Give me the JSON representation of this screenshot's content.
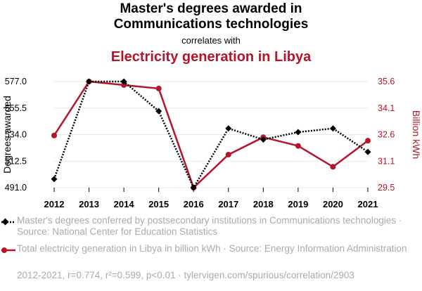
{
  "header": {
    "title_line1": "Master's degrees awarded in",
    "title_line2": "Communications technologies",
    "connector": "correlates with",
    "title2": "Electricity generation in Libya"
  },
  "legend": {
    "series1": "Master's degrees conferred by postsecondary institutions in Communications technologies · Source: National Center for Education Statistics",
    "series2": "Total electricity generation in Libya in billion kWh · Source: Energy Information Administration"
  },
  "footer": "2012-2021, r=0.774, r²=0.599, p<0.01 · tylervigen.com/spurious/correlation/2903",
  "colors": {
    "series1": "#000000",
    "series2": "#b5152b",
    "grid": "#e8e8e8"
  },
  "chart_data": {
    "type": "line",
    "x": [
      "2012",
      "2013",
      "2014",
      "2015",
      "2016",
      "2017",
      "2018",
      "2019",
      "2020",
      "2021"
    ],
    "y_left": {
      "label": "Degrees awarded",
      "ticks": [
        "491.0",
        "512.5",
        "534.0",
        "555.5",
        "577.0"
      ],
      "range": [
        491.0,
        577.0
      ]
    },
    "y_right": {
      "label": "Billion kWh",
      "ticks": [
        "29.5",
        "31.1",
        "32.6",
        "34.1",
        "35.6"
      ],
      "range": [
        29.5,
        35.6
      ]
    },
    "series": [
      {
        "name": "Master's degrees conferred by postsecondary institutions in Communications technologies",
        "axis": "left",
        "style": "dotted",
        "values": [
          498,
          577,
          577,
          553,
          491,
          539,
          530,
          536,
          539,
          520
        ]
      },
      {
        "name": "Total electricity generation in Libya in billion kWh",
        "axis": "right",
        "style": "solid",
        "values": [
          32.5,
          35.6,
          35.4,
          35.2,
          29.5,
          31.4,
          32.4,
          31.9,
          30.7,
          32.2
        ]
      }
    ],
    "grid": true
  }
}
